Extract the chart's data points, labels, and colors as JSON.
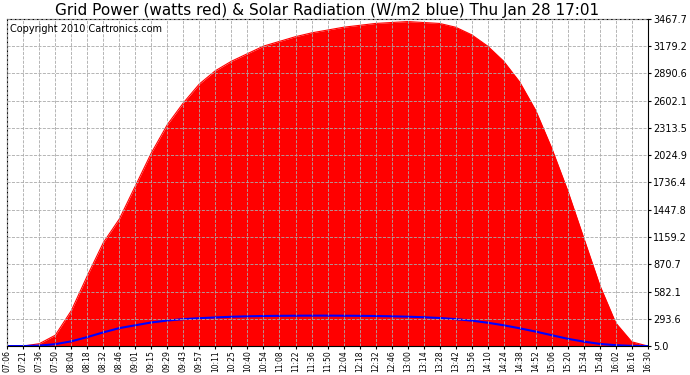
{
  "title": "Grid Power (watts red) & Solar Radiation (W/m2 blue) Thu Jan 28 17:01",
  "copyright_text": "Copyright 2010 Cartronics.com",
  "yticks": [
    5.0,
    293.6,
    582.1,
    870.7,
    1159.2,
    1447.8,
    1736.4,
    2024.9,
    2313.5,
    2602.1,
    2890.6,
    3179.2,
    3467.7
  ],
  "ymin": 5.0,
  "ymax": 3467.7,
  "xtick_labels": [
    "07:06",
    "07:21",
    "07:36",
    "07:50",
    "08:04",
    "08:18",
    "08:32",
    "08:46",
    "09:01",
    "09:15",
    "09:29",
    "09:43",
    "09:57",
    "10:11",
    "10:25",
    "10:40",
    "10:54",
    "11:08",
    "11:22",
    "11:36",
    "11:50",
    "12:04",
    "12:18",
    "12:32",
    "12:46",
    "13:00",
    "13:14",
    "13:28",
    "13:42",
    "13:56",
    "14:10",
    "14:24",
    "14:38",
    "14:52",
    "15:06",
    "15:20",
    "15:34",
    "15:48",
    "16:02",
    "16:16",
    "16:30"
  ],
  "background_color": "#ffffff",
  "plot_bg_color": "#ffffff",
  "grid_color": "#aaaaaa",
  "red_color": "#ff0000",
  "blue_color": "#0000ff",
  "title_fontsize": 11,
  "copyright_fontsize": 7,
  "red_vals": [
    5,
    5,
    30,
    120,
    380,
    750,
    1100,
    1350,
    1700,
    2050,
    2350,
    2580,
    2780,
    2920,
    3020,
    3100,
    3180,
    3230,
    3280,
    3320,
    3350,
    3380,
    3400,
    3420,
    3430,
    3440,
    3430,
    3420,
    3380,
    3300,
    3180,
    3020,
    2800,
    2500,
    2100,
    1650,
    1150,
    650,
    250,
    50,
    5
  ],
  "blue_vals": [
    5,
    5,
    10,
    25,
    55,
    100,
    150,
    195,
    225,
    255,
    275,
    290,
    300,
    308,
    315,
    320,
    323,
    325,
    326,
    327,
    327,
    326,
    325,
    323,
    320,
    316,
    310,
    302,
    290,
    274,
    252,
    225,
    193,
    158,
    120,
    82,
    52,
    28,
    14,
    7,
    5
  ]
}
